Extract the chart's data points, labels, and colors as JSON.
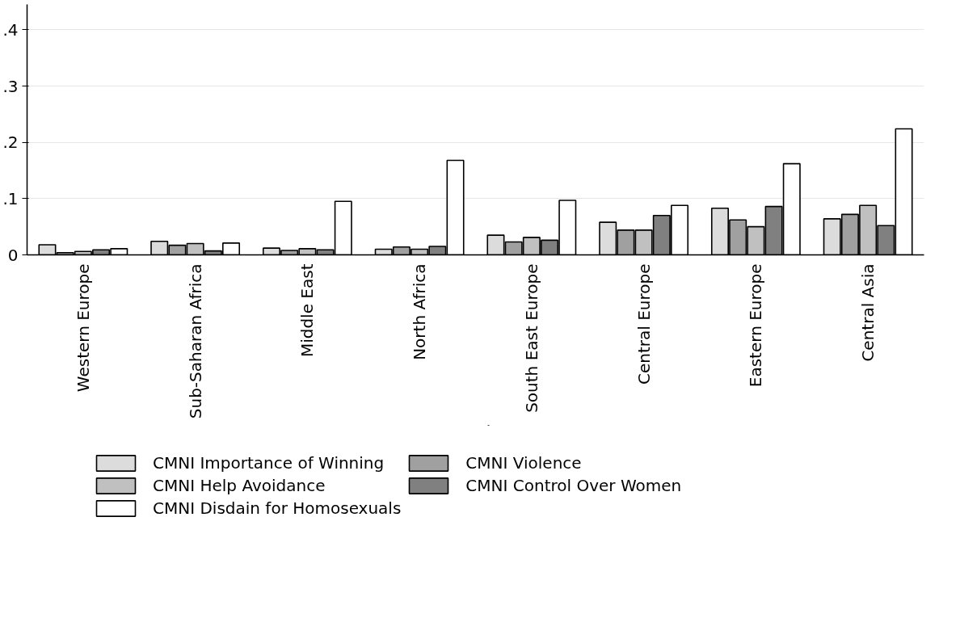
{
  "chart_data": {
    "type": "bar",
    "categories": [
      "Western Europe",
      "Sub-Saharan Africa",
      "Middle East",
      "North Africa",
      "South East Europe",
      "Central Europe",
      "Eastern Europe",
      "Central Asia"
    ],
    "series": [
      {
        "name": "CMNI Importance of Winning",
        "color": "#dcdcdc",
        "values": [
          0.018,
          0.024,
          0.012,
          0.01,
          0.035,
          0.058,
          0.083,
          0.064
        ]
      },
      {
        "name": "CMNI Violence",
        "color": "#a0a0a0",
        "values": [
          0.004,
          0.017,
          0.008,
          0.014,
          0.023,
          0.044,
          0.062,
          0.072
        ]
      },
      {
        "name": "CMNI Help Avoidance",
        "color": "#c0c0c0",
        "values": [
          0.006,
          0.02,
          0.011,
          0.01,
          0.031,
          0.044,
          0.05,
          0.088
        ]
      },
      {
        "name": "CMNI Control Over Women",
        "color": "#808080",
        "values": [
          0.009,
          0.007,
          0.009,
          0.015,
          0.026,
          0.07,
          0.086,
          0.052
        ]
      },
      {
        "name": "CMNI Disdain for Homosexuals",
        "color": "#ffffff",
        "values": [
          0.011,
          0.021,
          0.095,
          0.168,
          0.097,
          0.088,
          0.162,
          0.224
        ]
      }
    ],
    "ylim": [
      0,
      0.445
    ],
    "yticks": [
      0,
      {
        "value": 0.1,
        "label": ".1"
      },
      {
        "value": 0.2,
        "label": ".2"
      },
      {
        "value": 0.3,
        "label": ".3"
      },
      {
        "value": 0.4,
        "label": ".4"
      }
    ],
    "grid": "y",
    "legend": "bottom"
  }
}
